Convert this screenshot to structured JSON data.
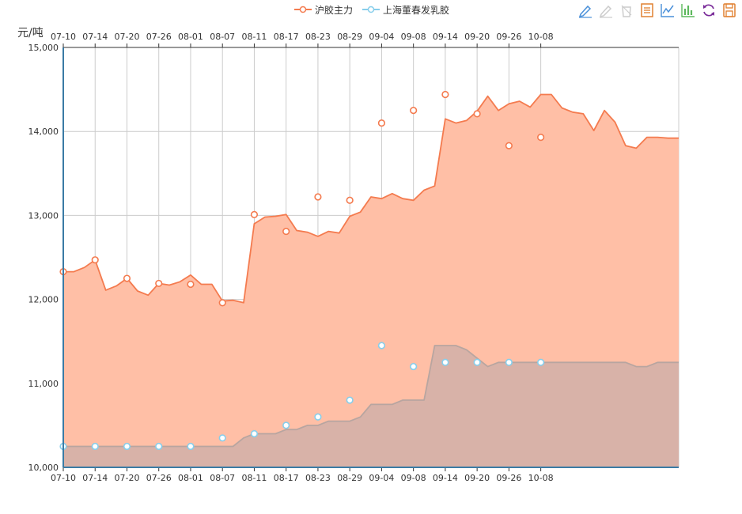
{
  "legend": [
    {
      "name": "沪胶主力",
      "color": "#F47B4F"
    },
    {
      "name": "上海董春发乳胶",
      "color": "#87CEEB"
    }
  ],
  "toolbox": [
    {
      "name": "mark-icon",
      "color": "#4A90D9"
    },
    {
      "name": "mark-undo-icon",
      "color": "#CCCCCC"
    },
    {
      "name": "mark-clear-icon",
      "color": "#CCCCCC"
    },
    {
      "name": "data-view-icon",
      "color": "#E08030"
    },
    {
      "name": "line-chart-icon",
      "color": "#4A90D9"
    },
    {
      "name": "bar-chart-icon",
      "color": "#5CB85C"
    },
    {
      "name": "restore-icon",
      "color": "#7A2C99"
    },
    {
      "name": "save-image-icon",
      "color": "#E08030"
    }
  ],
  "chart_data": {
    "type": "area",
    "ylabel": "元/吨",
    "ylim": [
      10000,
      15000
    ],
    "yticks": [
      10000,
      11000,
      12000,
      13000,
      14000,
      15000
    ],
    "ytick_labels": [
      "10,000",
      "11,000",
      "12,000",
      "13,000",
      "14,000",
      "15,000"
    ],
    "x_tick_labels": [
      "07-10",
      "07-14",
      "07-20",
      "07-26",
      "08-01",
      "08-07",
      "08-11",
      "08-17",
      "08-23",
      "08-29",
      "09-04",
      "09-08",
      "09-14",
      "09-20",
      "09-26",
      "10-08"
    ],
    "grid": true,
    "legend_position": "top-center",
    "series": [
      {
        "name": "沪胶主力",
        "color": "#F47B4F",
        "area_color": "#FFBFA6",
        "values": [
          12330,
          12330,
          12380,
          12470,
          12110,
          12160,
          12250,
          12100,
          12050,
          12190,
          12170,
          12210,
          12290,
          12180,
          12180,
          11980,
          11990,
          11960,
          12900,
          12980,
          12990,
          13010,
          12820,
          12800,
          12750,
          12810,
          12790,
          12990,
          13040,
          13220,
          13200,
          13260,
          13200,
          13180,
          13300,
          13350,
          14150,
          14100,
          14130,
          14240,
          14420,
          14250,
          14330,
          14360,
          14290,
          14440,
          14440,
          14280,
          14230,
          14210,
          14010,
          14250,
          14110,
          13830,
          13800,
          13930,
          13930,
          13920,
          13920
        ],
        "markers": [
          [
            0,
            12330
          ],
          [
            3,
            12470
          ],
          [
            6,
            12250
          ],
          [
            9,
            12190
          ],
          [
            12,
            12180
          ],
          [
            15,
            11960
          ],
          [
            18,
            13010
          ],
          [
            21,
            12810
          ],
          [
            24,
            13220
          ],
          [
            27,
            13180
          ],
          [
            30,
            14100
          ],
          [
            33,
            14250
          ],
          [
            36,
            14440
          ],
          [
            39,
            14210
          ],
          [
            42,
            13830
          ],
          [
            45,
            13930
          ]
        ]
      },
      {
        "name": "上海董春发乳胶",
        "color": "#87CEEB",
        "area_color": "#D4B0A8",
        "values": [
          10250,
          10250,
          10250,
          10250,
          10250,
          10250,
          10250,
          10250,
          10250,
          10250,
          10250,
          10250,
          10250,
          10250,
          10250,
          10250,
          10250,
          10350,
          10400,
          10400,
          10400,
          10450,
          10450,
          10500,
          10500,
          10550,
          10550,
          10550,
          10600,
          10750,
          10750,
          10750,
          10800,
          10800,
          10800,
          11450,
          11450,
          11450,
          11400,
          11300,
          11200,
          11250,
          11250,
          11250,
          11250,
          11250,
          11250,
          11250,
          11250,
          11250,
          11250,
          11250,
          11250,
          11250,
          11200,
          11200,
          11250,
          11250,
          11250
        ],
        "markers": [
          [
            0,
            10250
          ],
          [
            3,
            10250
          ],
          [
            6,
            10250
          ],
          [
            9,
            10250
          ],
          [
            12,
            10250
          ],
          [
            15,
            10350
          ],
          [
            18,
            10400
          ],
          [
            21,
            10500
          ],
          [
            24,
            10600
          ],
          [
            27,
            10800
          ],
          [
            30,
            11450
          ],
          [
            33,
            11200
          ],
          [
            36,
            11250
          ],
          [
            39,
            11250
          ],
          [
            42,
            11250
          ],
          [
            45,
            11250
          ]
        ]
      }
    ]
  }
}
